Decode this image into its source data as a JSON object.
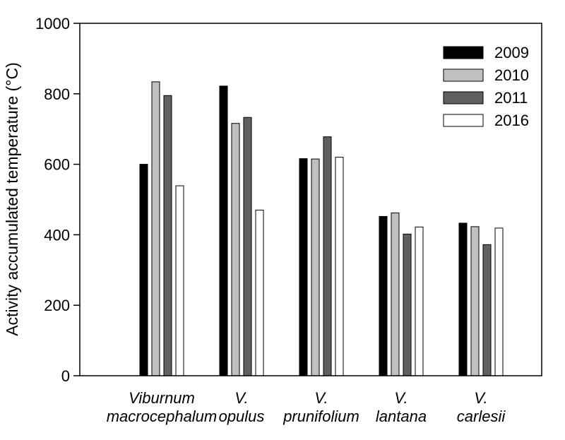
{
  "chart_data": {
    "type": "bar",
    "ylabel": "Activity accumulated temperature (°C)",
    "xlabel": "",
    "ylim": [
      0,
      1000
    ],
    "yticks": [
      0,
      200,
      400,
      600,
      800,
      1000
    ],
    "categories": [
      [
        "Viburnum",
        "macrocephalum"
      ],
      [
        "V.",
        "opulus"
      ],
      [
        "V.",
        "prunifolium"
      ],
      [
        "V.",
        "lantana"
      ],
      [
        "V.",
        "carlesii"
      ]
    ],
    "series": [
      {
        "name": "2009",
        "color": "#000000",
        "values": [
          600,
          822,
          616,
          452,
          433
        ]
      },
      {
        "name": "2010",
        "color": "#c0c0c0",
        "values": [
          834,
          716,
          615,
          462,
          423
        ]
      },
      {
        "name": "2011",
        "color": "#606060",
        "values": [
          795,
          733,
          678,
          402,
          372
        ]
      },
      {
        "name": "2016",
        "color": "#ffffff",
        "values": [
          539,
          470,
          620,
          422,
          419
        ]
      }
    ],
    "legend_position": "top-right",
    "grid": false
  }
}
